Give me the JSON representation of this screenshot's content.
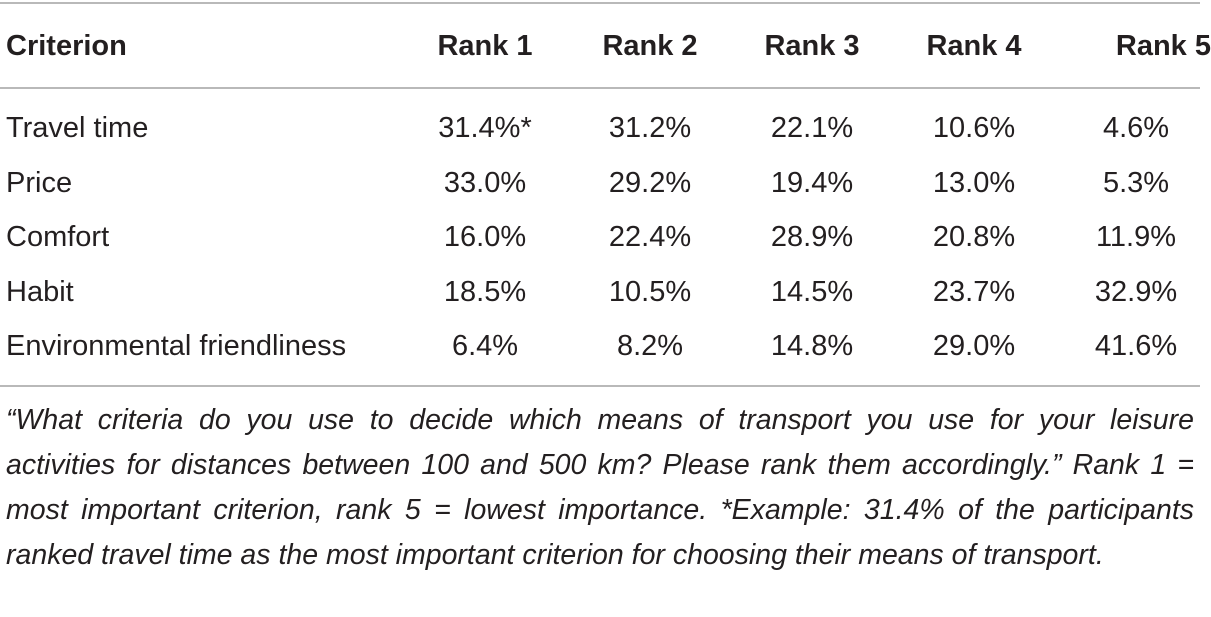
{
  "table": {
    "headers": [
      "Criterion",
      "Rank 1",
      "Rank 2",
      "Rank 3",
      "Rank 4",
      "Rank 5"
    ],
    "rows": [
      {
        "criterion": "Travel time",
        "values": [
          "31.4%*",
          "31.2%",
          "22.1%",
          "10.6%",
          "4.6%"
        ]
      },
      {
        "criterion": "Price",
        "values": [
          "33.0%",
          "29.2%",
          "19.4%",
          "13.0%",
          "5.3%"
        ]
      },
      {
        "criterion": "Comfort",
        "values": [
          "16.0%",
          "22.4%",
          "28.9%",
          "20.8%",
          "11.9%"
        ]
      },
      {
        "criterion": "Habit",
        "values": [
          "18.5%",
          "10.5%",
          "14.5%",
          "23.7%",
          "32.9%"
        ]
      },
      {
        "criterion": "Environmental friendliness",
        "values": [
          "6.4%",
          "8.2%",
          "14.8%",
          "29.0%",
          "41.6%"
        ]
      }
    ]
  },
  "footnote": "“What criteria do you use to decide which means of transport you use for your leisure activities for distances between 100 and 500 km? Please rank them accord­ingly.” Rank 1 = most important criterion, rank 5 = lowest importance. *Example: 31.4% of the participants ranked travel time as the most important criterion for choosing their means of transport."
}
